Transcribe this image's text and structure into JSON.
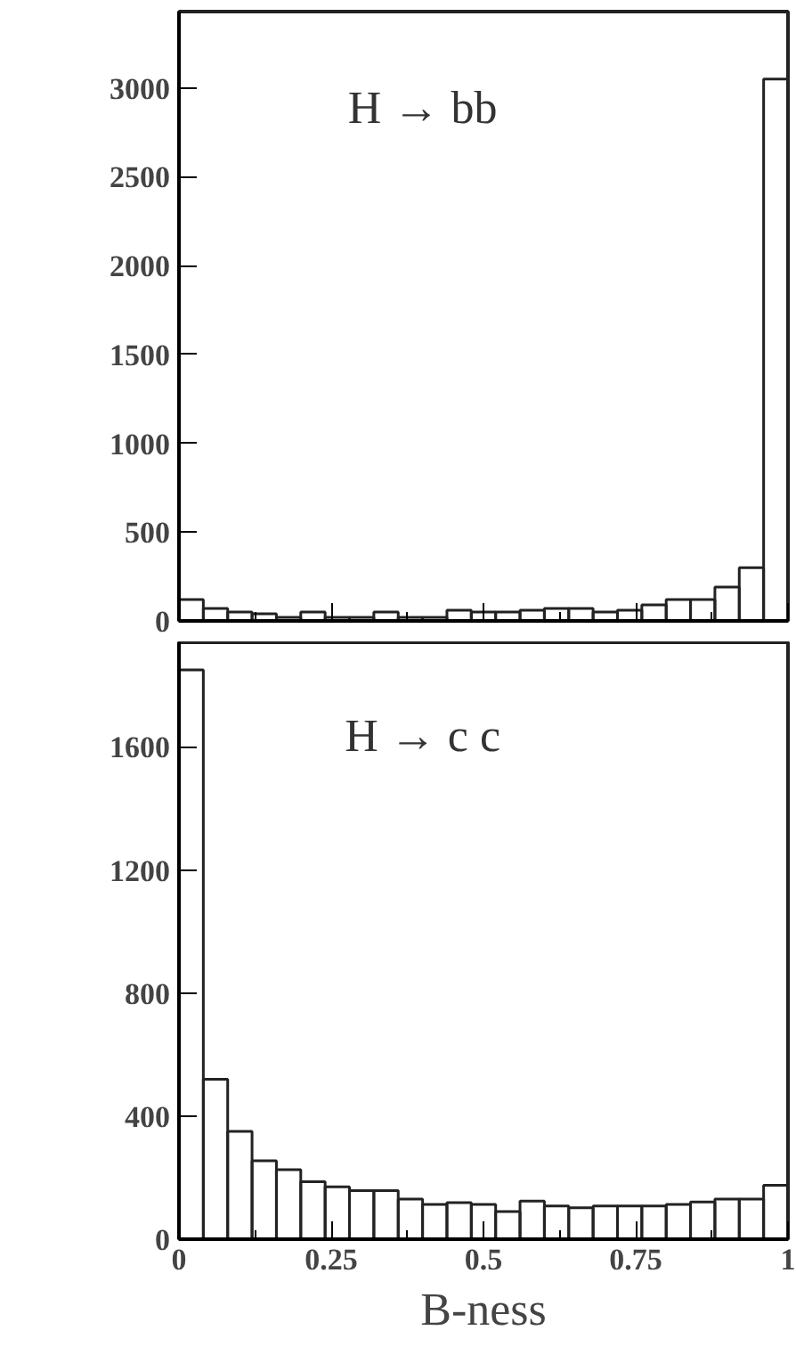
{
  "chart_data": [
    {
      "type": "histogram",
      "bins": [
        0,
        0.04,
        0.08,
        0.12,
        0.16,
        0.2,
        0.24,
        0.28,
        0.32,
        0.36,
        0.4,
        0.44,
        0.48,
        0.52,
        0.56,
        0.6,
        0.64,
        0.68,
        0.72,
        0.76,
        0.8,
        0.84,
        0.88,
        0.92,
        0.96,
        1
      ],
      "values": [
        120,
        70,
        50,
        40,
        20,
        50,
        20,
        20,
        50,
        20,
        20,
        60,
        50,
        50,
        60,
        70,
        70,
        50,
        60,
        90,
        120,
        120,
        190,
        300,
        3050
      ],
      "color": "#222222",
      "xlim": [
        0,
        1
      ],
      "ylim": [
        0,
        3430
      ],
      "xticks": [
        {
          "value": 0,
          "label": null
        },
        {
          "value": 0.25,
          "label": null
        },
        {
          "value": 0.5,
          "label": null
        },
        {
          "value": 0.75,
          "label": null
        },
        {
          "value": 1,
          "label": null
        }
      ],
      "yticks": [
        0,
        500,
        1000,
        1500,
        2000,
        2500,
        3000
      ],
      "tick_labels": "y",
      "annotations": [
        "H → bb"
      ]
    },
    {
      "type": "histogram",
      "bins": [
        0,
        0.04,
        0.08,
        0.12,
        0.16,
        0.2,
        0.24,
        0.28,
        0.32,
        0.36,
        0.4,
        0.44,
        0.48,
        0.52,
        0.56,
        0.6,
        0.64,
        0.68,
        0.72,
        0.76,
        0.8,
        0.84,
        0.88,
        0.92,
        0.96,
        1
      ],
      "values": [
        1850,
        520,
        350,
        255,
        226,
        187,
        170,
        158,
        158,
        130,
        113,
        119,
        113,
        90,
        124,
        108,
        102,
        108,
        108,
        108,
        113,
        121,
        130,
        130,
        175
      ],
      "color": "#222222",
      "xlim": [
        0,
        1
      ],
      "ylim": [
        0,
        1940
      ],
      "xticks": [
        0,
        0.25,
        0.5,
        0.75,
        1
      ],
      "yticks": [
        0,
        400,
        800,
        1200,
        1600
      ],
      "xlabel": "B-ness",
      "annotations": [
        "H → c c"
      ]
    }
  ]
}
